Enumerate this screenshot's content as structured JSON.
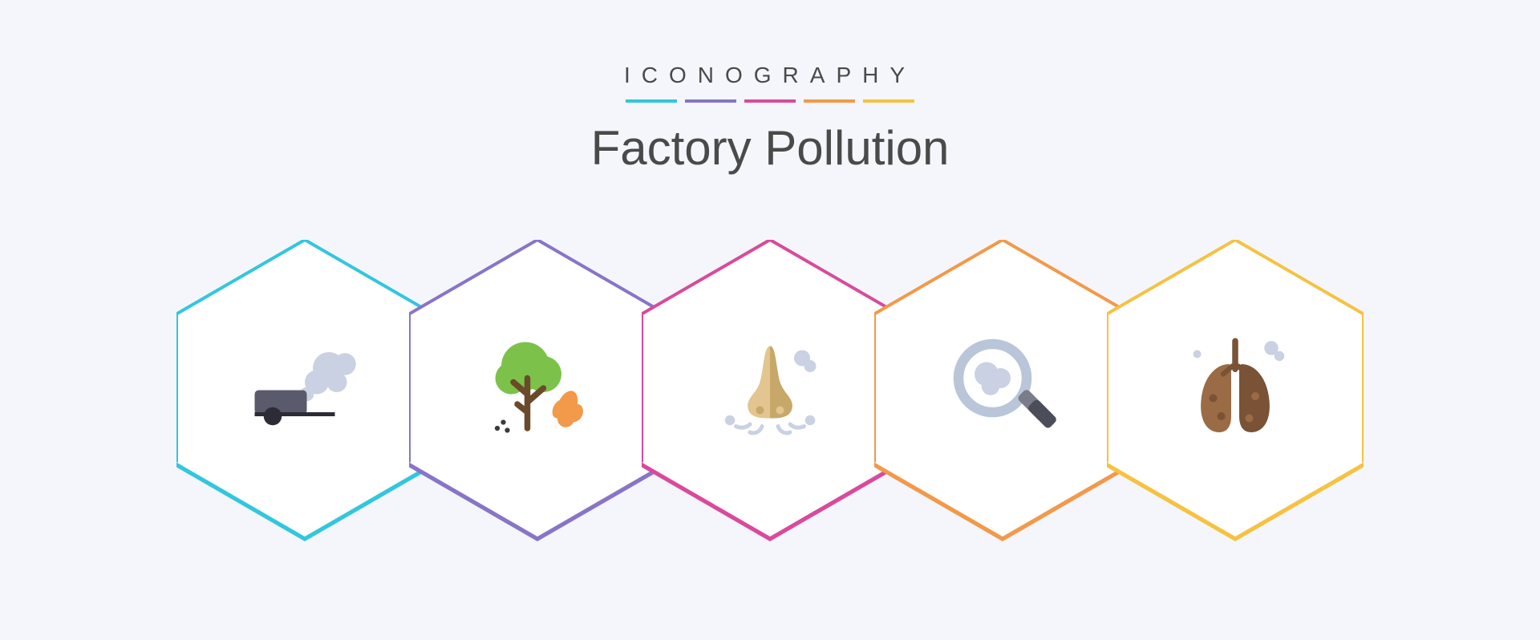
{
  "header": {
    "overline": "ICONOGRAPHY",
    "title": "Factory Pollution"
  },
  "palette": {
    "cyan": "#33c6de",
    "purple": "#8874c8",
    "magenta": "#d94a9c",
    "orange": "#f2994a",
    "yellow": "#f5c242",
    "background": "#f4f6fb",
    "hex_fill": "#ffffff",
    "text": "#4a4a4a"
  },
  "underlines": [
    "cyan",
    "purple",
    "magenta",
    "orange",
    "yellow"
  ],
  "icons": [
    {
      "id": "car-smoke",
      "accent": "cyan",
      "colors": {
        "car": "#595a6b",
        "wheel": "#2c2c36",
        "smoke": "#c9d1e3"
      }
    },
    {
      "id": "tree-fire",
      "accent": "purple",
      "colors": {
        "foliage": "#7cc24a",
        "trunk": "#6b4a2c",
        "fire": "#f2994a",
        "spark": "#3a3a3a"
      }
    },
    {
      "id": "nose-dust",
      "accent": "magenta",
      "colors": {
        "nose": "#e2c58f",
        "nose_dark": "#c7a869",
        "dust": "#c9d1e3"
      }
    },
    {
      "id": "magnify-smog",
      "accent": "orange",
      "colors": {
        "ring": "#b9c5d8",
        "handle": "#4b4d59",
        "handle2": "#7a7c89",
        "smog": "#c9d1e3"
      }
    },
    {
      "id": "lungs-dirty",
      "accent": "yellow",
      "colors": {
        "lung": "#9a6b45",
        "lung_dark": "#7a5236",
        "dust": "#c9d1e3"
      }
    }
  ]
}
